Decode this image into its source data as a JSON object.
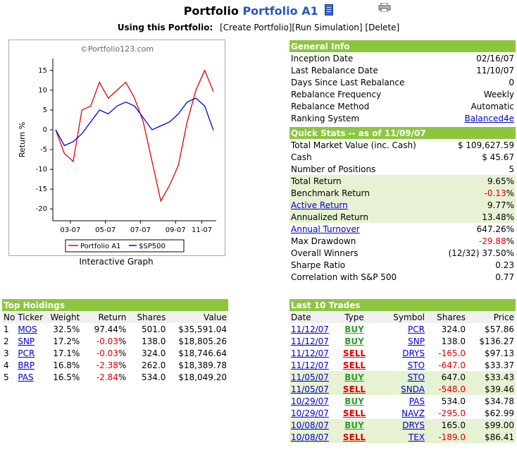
{
  "header": {
    "title_prefix": "Portfolio",
    "portfolio_name": "Portfolio A1",
    "using_label": "Using this Portfolio:",
    "actions": [
      "[Create Portfolio]",
      "[Run Simulation]",
      "[Delete]"
    ]
  },
  "chart": {
    "watermark": "©Portfolio123.com",
    "caption": "Interactive Graph",
    "chart_data": {
      "type": "line",
      "ylabel": "Return %",
      "xlabel": "",
      "ylim": [
        -23,
        18
      ],
      "yticks": [
        15,
        10,
        5,
        0,
        -5,
        -10,
        -15,
        -20
      ],
      "xtick_labels": [
        "03-07",
        "05-07",
        "07-07",
        "09-07",
        "11-07"
      ],
      "x": [
        "02-16",
        "03-01",
        "03-15",
        "04-01",
        "04-15",
        "05-01",
        "05-15",
        "06-01",
        "06-15",
        "07-01",
        "07-15",
        "08-01",
        "08-15",
        "09-01",
        "09-15",
        "10-01",
        "10-15",
        "11-01",
        "11-10"
      ],
      "series": [
        {
          "name": "Portfolio A1",
          "color": "#e60000",
          "values": [
            0,
            -6,
            -8,
            5,
            6,
            12,
            8,
            10,
            12,
            8,
            2,
            -8,
            -18,
            -14,
            -9,
            2,
            10,
            15,
            9.65
          ]
        },
        {
          "name": "$SP500",
          "color": "#0000e6",
          "values": [
            0,
            -4,
            -3,
            -1,
            2,
            5,
            4,
            6,
            7,
            6,
            3,
            0,
            1,
            2,
            4,
            7,
            8,
            6,
            -0.13
          ]
        }
      ],
      "legend": "bottom",
      "grid": false
    }
  },
  "general_info": {
    "header": "General Info",
    "rows": [
      {
        "label": "Inception Date",
        "value": "02/16/07"
      },
      {
        "label": "Last Rebalance Date",
        "value": "11/10/07"
      },
      {
        "label": "Days Since Last Rebalance",
        "value": "0"
      },
      {
        "label": "Rebalance Frequency",
        "value": "Weekly"
      },
      {
        "label": "Rebalance Method",
        "value": "Automatic"
      },
      {
        "label": "Ranking System",
        "value": "Balanced4e"
      }
    ]
  },
  "quick_stats": {
    "header": "Quick Stats -- as of 11/09/07",
    "rows": [
      {
        "label": "Total Market Value (inc. Cash)",
        "value": "$ 109,627.59"
      },
      {
        "label": "Cash",
        "value": "$ 45.67"
      },
      {
        "label": "Number of Positions",
        "value": "5"
      },
      {
        "label": "Total Return",
        "value": "9.65",
        "suffix": "%"
      },
      {
        "label": "Benchmark Return",
        "value": "-0.13",
        "suffix": "%"
      },
      {
        "label": "Active Return",
        "value": "9.77",
        "suffix": "%"
      },
      {
        "label": "Annualized Return",
        "value": "13.48",
        "suffix": "%"
      },
      {
        "label": "Annual Turnover",
        "value": "647.26%"
      },
      {
        "label": "Max Drawdown",
        "value": "-29.88",
        "suffix": "%"
      },
      {
        "label": "Overall Winners",
        "value": "(12/32) 37.50%"
      },
      {
        "label": "Sharpe Ratio",
        "value": "0.23"
      },
      {
        "label": "Correlation with S&P 500",
        "value": "0.77"
      }
    ]
  },
  "top_holdings": {
    "header": "Top Holdings",
    "columns": [
      "No",
      "Ticker",
      "Weight",
      "Return",
      "Shares",
      "Value"
    ],
    "rows": [
      {
        "no": "1",
        "ticker": "MOS",
        "weight": "32.5%",
        "ret": "97.44",
        "shares": "501.0",
        "value": "$35,591.04"
      },
      {
        "no": "2",
        "ticker": "SNP",
        "weight": "17.2%",
        "ret": "-0.03",
        "shares": "138.0",
        "value": "$18,805.26"
      },
      {
        "no": "3",
        "ticker": "PCR",
        "weight": "17.1%",
        "ret": "-0.03",
        "shares": "324.0",
        "value": "$18,746.64"
      },
      {
        "no": "4",
        "ticker": "BRP",
        "weight": "16.8%",
        "ret": "-2.38",
        "shares": "262.0",
        "value": "$18,389.78"
      },
      {
        "no": "5",
        "ticker": "PAS",
        "weight": "16.5%",
        "ret": "-2.84",
        "shares": "534.0",
        "value": "$18,049.20"
      }
    ]
  },
  "last_trades": {
    "header": "Last 10 Trades",
    "columns": [
      "Date",
      "Type",
      "Symbol",
      "Shares",
      "Price"
    ],
    "rows": [
      {
        "date": "11/12/07",
        "type": "BUY",
        "symbol": "PCR",
        "shares": "324.0",
        "price": "$57.86"
      },
      {
        "date": "11/12/07",
        "type": "BUY",
        "symbol": "SNP",
        "shares": "138.0",
        "price": "$136.27"
      },
      {
        "date": "11/12/07",
        "type": "SELL",
        "symbol": "DRYS",
        "shares": "-165.0",
        "price": "$97.13"
      },
      {
        "date": "11/12/07",
        "type": "SELL",
        "symbol": "STO",
        "shares": "-647.0",
        "price": "$33.37"
      },
      {
        "date": "11/05/07",
        "type": "BUY",
        "symbol": "STO",
        "shares": "647.0",
        "price": "$33.43"
      },
      {
        "date": "11/05/07",
        "type": "SELL",
        "symbol": "SNDA",
        "shares": "-548.0",
        "price": "$39.46"
      },
      {
        "date": "10/29/07",
        "type": "BUY",
        "symbol": "PAS",
        "shares": "534.0",
        "price": "$34.78"
      },
      {
        "date": "10/29/07",
        "type": "SELL",
        "symbol": "NAVZ",
        "shares": "-295.0",
        "price": "$62.99"
      },
      {
        "date": "10/08/07",
        "type": "BUY",
        "symbol": "DRYS",
        "shares": "165.0",
        "price": "$99.00"
      },
      {
        "date": "10/08/07",
        "type": "SELL",
        "symbol": "TEX",
        "shares": "-189.0",
        "price": "$86.41"
      }
    ]
  }
}
